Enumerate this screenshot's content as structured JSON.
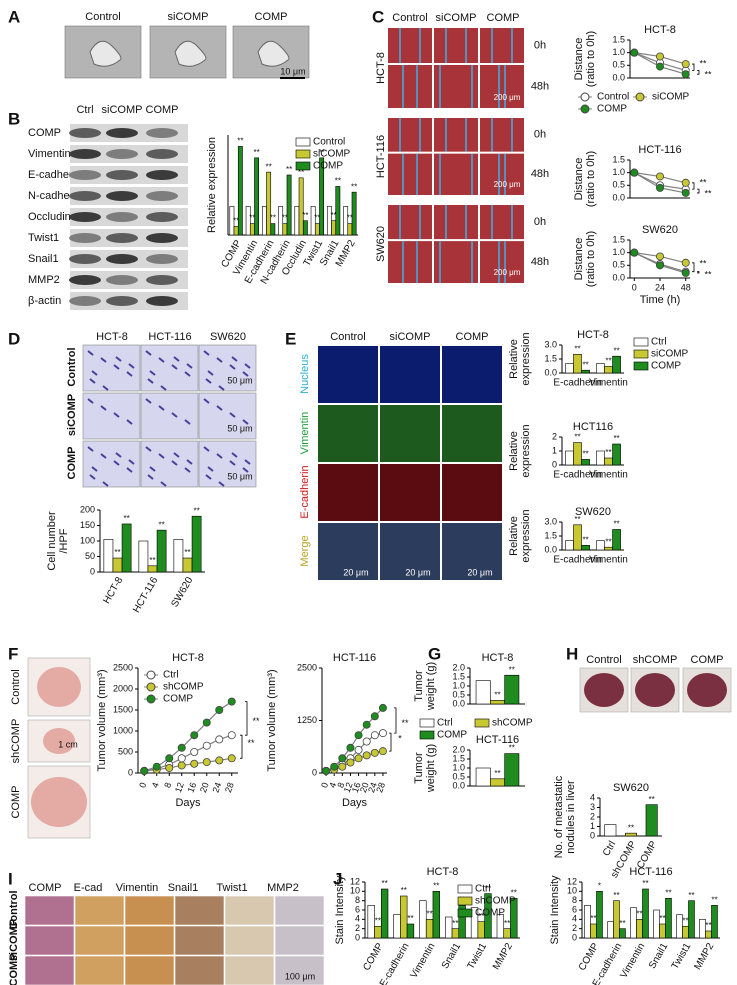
{
  "panel_letters": [
    "A",
    "B",
    "C",
    "D",
    "E",
    "F",
    "G",
    "H",
    "I",
    "J"
  ],
  "a": {
    "labels": [
      "Control",
      "siCOMP",
      "COMP"
    ],
    "scale": "10 μm"
  },
  "b": {
    "columns": [
      "Ctrl",
      "siCOMP",
      "COMP"
    ],
    "rows": [
      "COMP",
      "Vimentin",
      "E-cadherin",
      "N-cadherin",
      "Occludin",
      "Twist1",
      "Snail1",
      "MMP2",
      "β-actin"
    ]
  },
  "c": {
    "columns": [
      "Control",
      "siCOMP",
      "COMP"
    ],
    "cell_lines": [
      "HCT-8",
      "HCT-116",
      "SW620"
    ],
    "times": [
      "0h",
      "48h"
    ],
    "scale": "200 μm"
  },
  "d": {
    "columns": [
      "HCT-8",
      "HCT-116",
      "SW620"
    ],
    "rows": [
      "Control",
      "siCOMP",
      "COMP"
    ],
    "scale": "50 μm"
  },
  "e": {
    "columns": [
      "Control",
      "siCOMP",
      "COMP"
    ],
    "rows": [
      "Nucleus",
      "Vimentin",
      "E-cadherin",
      "Merge"
    ],
    "scale": "20 μm"
  },
  "f": {
    "rows": [
      "Control",
      "shCOMP",
      "COMP"
    ],
    "scale": "1 cm"
  },
  "h": {
    "columns": [
      "Control",
      "shCOMP",
      "COMP"
    ]
  },
  "i": {
    "columns": [
      "COMP",
      "E-cad",
      "Vimentin",
      "Snail1",
      "Twist1",
      "MMP2"
    ],
    "rows": [
      "Control",
      "siCOMP",
      "COMP"
    ],
    "scale": "100 μm"
  },
  "chart_data": [
    {
      "type": "bar",
      "ylabel": [
        "Relative expression"
      ],
      "ylim": [
        0,
        3.5
      ],
      "legend": "upper right",
      "categories": [
        "COMP",
        "Vimentin",
        "E-cadherin",
        "N-cadherin",
        "Occludin",
        "Twist1",
        "Snail1",
        "MMP2"
      ],
      "series": [
        {
          "name": "Control",
          "color": "#ffffff",
          "values": [
            1,
            1,
            1,
            1,
            1,
            1,
            1,
            1
          ]
        },
        {
          "name": "siCOMP",
          "color": "#c8c832",
          "values": [
            0.3,
            0.4,
            2.2,
            0.4,
            2.0,
            0.4,
            0.5,
            0.4
          ],
          "annotations": [
            "**",
            "**",
            "**",
            "**",
            "**",
            "**",
            "**",
            "**"
          ]
        },
        {
          "name": "COMP",
          "color": "#1e8c1e",
          "values": [
            3.1,
            2.7,
            0.4,
            2.1,
            0.5,
            2.7,
            1.7,
            1.5
          ],
          "annotations": [
            "**",
            "**",
            "**",
            "**",
            "**",
            "**",
            "**",
            "**"
          ]
        }
      ]
    },
    {
      "type": "line",
      "title": "HCT-8",
      "ylabel": [
        "Distance",
        "(ratio to 0h)"
      ],
      "x": [
        0,
        24,
        48
      ],
      "xlim": [
        -4,
        52
      ],
      "ylim": [
        0,
        1.5
      ],
      "yticks": [
        {
          "value": 0,
          "label": "0.0"
        },
        0.5,
        {
          "value": 1,
          "label": "1.0"
        },
        1.5
      ],
      "legend": "lower left",
      "line_color": "#808080",
      "annotations": [
        "**",
        "**"
      ],
      "series": [
        {
          "name": "Control",
          "color": "#ffffff",
          "values": [
            1,
            0.6,
            0.3
          ]
        },
        {
          "name": "siCOMP",
          "color": "#c8c832",
          "values": [
            1,
            0.85,
            0.55
          ]
        },
        {
          "name": "COMP",
          "color": "#1e8c1e",
          "values": [
            1,
            0.45,
            0.15
          ]
        }
      ]
    },
    {
      "type": "line",
      "title": "HCT-116",
      "ylabel": [
        "Distance",
        "(ratio to 0h)"
      ],
      "x": [
        0,
        24,
        48
      ],
      "xlim": [
        -4,
        52
      ],
      "ylim": [
        0,
        1.5
      ],
      "yticks": [
        {
          "value": 0,
          "label": "0.0"
        },
        0.5,
        {
          "value": 1,
          "label": "1.0"
        },
        1.5
      ],
      "line_color": "#808080",
      "annotations": [
        "**",
        "**"
      ],
      "series": [
        {
          "color": "#ffffff",
          "values": [
            1,
            0.5,
            0.35
          ]
        },
        {
          "color": "#c8c832",
          "values": [
            1,
            0.85,
            0.6
          ]
        },
        {
          "color": "#1e8c1e",
          "values": [
            1,
            0.4,
            0.2
          ]
        }
      ]
    },
    {
      "type": "line",
      "title": "SW620",
      "ylabel": [
        "Distance",
        "(ratio to 0h)"
      ],
      "xlabel": "Time (h)",
      "x": [
        0,
        24,
        48
      ],
      "xlim": [
        -4,
        52
      ],
      "ylim": [
        0,
        1.5
      ],
      "xticks": [
        0,
        24,
        48
      ],
      "yticks": [
        {
          "value": 0,
          "label": "0.0"
        },
        0.5,
        {
          "value": 1,
          "label": "1.0"
        },
        1.5
      ],
      "line_color": "#808080",
      "annotations": [
        "**",
        "**"
      ],
      "series": [
        {
          "color": "#ffffff",
          "values": [
            1,
            0.55,
            0.25
          ]
        },
        {
          "color": "#c8c832",
          "values": [
            1,
            0.85,
            0.6
          ]
        },
        {
          "color": "#1e8c1e",
          "values": [
            1,
            0.5,
            0.2
          ]
        }
      ]
    },
    {
      "type": "bar",
      "ylabel": [
        "Cell number",
        "/HPF"
      ],
      "ylim": [
        0,
        200
      ],
      "yticks": [
        0,
        50,
        100,
        150,
        200
      ],
      "categories": [
        "HCT-8",
        "HCT-116",
        "SW620"
      ],
      "series": [
        {
          "color": "#ffffff",
          "values": [
            105,
            100,
            105
          ]
        },
        {
          "color": "#c8c832",
          "values": [
            45,
            20,
            45
          ],
          "annotations": [
            "**",
            "**",
            "**"
          ]
        },
        {
          "color": "#1e8c1e",
          "values": [
            155,
            135,
            180
          ],
          "annotations": [
            "**",
            "**",
            "**"
          ]
        }
      ]
    },
    {
      "type": "bar",
      "title": "HCT-8",
      "ylabel": [
        "Relative",
        "expression"
      ],
      "ylim": [
        0,
        3
      ],
      "yticks": [
        {
          "value": 0,
          "label": "0.0"
        },
        1.5,
        {
          "value": 3,
          "label": "3.0"
        }
      ],
      "legend": "right",
      "categories": [
        "E-cadherin",
        "Vimentin"
      ],
      "series": [
        {
          "name": "Ctrl",
          "color": "#ffffff",
          "values": [
            1,
            1
          ]
        },
        {
          "name": "siCOMP",
          "color": "#c8c832",
          "values": [
            2.0,
            0.7
          ],
          "annotations": [
            "**",
            "**"
          ]
        },
        {
          "name": "COMP",
          "color": "#1e8c1e",
          "values": [
            0.3,
            1.8
          ],
          "annotations": [
            "**",
            "**"
          ]
        }
      ]
    },
    {
      "type": "bar",
      "title": "HCT116",
      "ylabel": [
        "Relative",
        "expression"
      ],
      "ylim": [
        0,
        2
      ],
      "yticks": [
        0,
        1,
        2
      ],
      "categories": [
        "E-cadherin",
        "Vimentin"
      ],
      "series": [
        {
          "color": "#ffffff",
          "values": [
            1,
            1
          ]
        },
        {
          "color": "#c8c832",
          "values": [
            1.6,
            0.5
          ],
          "annotations": [
            "**",
            "**"
          ]
        },
        {
          "color": "#1e8c1e",
          "values": [
            0.4,
            1.5
          ],
          "annotations": [
            "**",
            "**"
          ]
        }
      ]
    },
    {
      "type": "bar",
      "title": "SW620",
      "ylabel": [
        "Relative",
        "expression"
      ],
      "ylim": [
        0,
        3
      ],
      "yticks": [
        {
          "value": 0,
          "label": "0.0"
        },
        1.5,
        {
          "value": 3,
          "label": "3.0"
        }
      ],
      "categories": [
        "E-cadherin",
        "Vimentin"
      ],
      "series": [
        {
          "color": "#ffffff",
          "values": [
            1,
            1
          ]
        },
        {
          "color": "#c8c832",
          "values": [
            2.7,
            0.3
          ],
          "annotations": [
            "**",
            "**"
          ]
        },
        {
          "color": "#1e8c1e",
          "values": [
            0.5,
            2.2
          ],
          "annotations": [
            "**",
            "**"
          ]
        }
      ]
    },
    {
      "type": "line",
      "title": "HCT-8",
      "ylabel": [
        "Tumor volume (mm³)"
      ],
      "xlabel": "Days",
      "x": [
        0,
        4,
        8,
        12,
        16,
        20,
        24,
        28
      ],
      "xlim": [
        -2,
        30
      ],
      "ylim": [
        0,
        2500
      ],
      "xticks": [
        0,
        4,
        8,
        12,
        16,
        20,
        24,
        28
      ],
      "yticks": [
        0,
        500,
        1000,
        1500,
        2000,
        2500
      ],
      "legend": "upper left",
      "line_color": "#808080",
      "annotations": [
        "**",
        "**"
      ],
      "series": [
        {
          "name": "Ctrl",
          "color": "#ffffff",
          "values": [
            50,
            100,
            200,
            350,
            500,
            650,
            800,
            900
          ]
        },
        {
          "name": "shCOMP",
          "color": "#c8c832",
          "values": [
            50,
            80,
            120,
            180,
            220,
            260,
            300,
            350
          ]
        },
        {
          "name": "COMP",
          "color": "#1e8c1e",
          "values": [
            50,
            150,
            350,
            600,
            900,
            1200,
            1500,
            1700
          ]
        }
      ]
    },
    {
      "type": "line",
      "title": "HCT-116",
      "ylabel": [
        "Tumor volume (mm³)"
      ],
      "xlabel": "Days",
      "x": [
        0,
        4,
        8,
        12,
        16,
        20,
        24,
        28
      ],
      "xlim": [
        -2,
        30
      ],
      "ylim": [
        0,
        2500
      ],
      "xticks": [
        0,
        4,
        8,
        12,
        16,
        20,
        24,
        28
      ],
      "yticks": [
        0,
        1250,
        2500
      ],
      "line_color": "#808080",
      "annotations": [
        "*",
        "**"
      ],
      "series": [
        {
          "color": "#ffffff",
          "values": [
            50,
            100,
            200,
            350,
            550,
            750,
            900,
            950
          ]
        },
        {
          "color": "#c8c832",
          "values": [
            50,
            80,
            150,
            250,
            350,
            420,
            480,
            520
          ]
        },
        {
          "color": "#1e8c1e",
          "values": [
            50,
            150,
            350,
            600,
            900,
            1150,
            1350,
            1550
          ]
        }
      ]
    },
    {
      "type": "bar",
      "title": "HCT-8",
      "ylabel": [
        "Tumor",
        "weight (g)"
      ],
      "ylim": [
        0,
        2
      ],
      "yticks": [
        {
          "value": 0,
          "label": "0.0"
        },
        0.5,
        {
          "value": 1,
          "label": "1.0"
        },
        1.5,
        {
          "value": 2,
          "label": "2.0"
        }
      ],
      "legend": "lower left",
      "series": [
        {
          "name": "Ctrl",
          "color": "#ffffff",
          "values": [
            1.3
          ]
        },
        {
          "name": "shCOMP",
          "color": "#c8c832",
          "values": [
            0.2
          ],
          "annotations": [
            "**"
          ]
        },
        {
          "name": "COMP",
          "color": "#1e8c1e",
          "values": [
            1.6
          ],
          "annotations": [
            "**"
          ]
        }
      ]
    },
    {
      "type": "bar",
      "title": "HCT-116",
      "ylabel": [
        "Tumor",
        "weight (g)"
      ],
      "ylim": [
        0,
        2
      ],
      "yticks": [
        {
          "value": 0,
          "label": "0.0"
        },
        0.5,
        {
          "value": 1,
          "label": "1.0"
        },
        1.5,
        {
          "value": 2,
          "label": "2.0"
        }
      ],
      "series": [
        {
          "color": "#ffffff",
          "values": [
            1.0
          ]
        },
        {
          "color": "#c8c832",
          "values": [
            0.4
          ],
          "annotations": [
            "**"
          ]
        },
        {
          "color": "#1e8c1e",
          "values": [
            1.8
          ],
          "annotations": [
            "**"
          ]
        }
      ]
    },
    {
      "type": "bar",
      "title": "SW620",
      "ylabel": [
        "No. of metastatic",
        "nodules in liver"
      ],
      "ylim": [
        0,
        4
      ],
      "yticks": [
        0,
        1,
        2,
        3,
        4
      ],
      "categories": [
        "Ctrl",
        "shCOMP",
        "COMP"
      ],
      "values": [
        1.2,
        0.3,
        3.3
      ],
      "colors": [
        "#ffffff",
        "#c8c832",
        "#1e8c1e"
      ],
      "annotations": [
        null,
        "**",
        "**"
      ]
    },
    {
      "type": "bar",
      "title": "HCT-8",
      "ylabel": [
        "Stain Intensity"
      ],
      "ylim": [
        0,
        12
      ],
      "yticks": [
        0,
        2,
        4,
        6,
        8,
        10,
        12
      ],
      "legend": "upper right",
      "categories": [
        "COMP",
        "E-cadherin",
        "Vimentin",
        "Snail1",
        "Twist1",
        "MMP2"
      ],
      "series": [
        {
          "name": "Ctrl",
          "color": "#ffffff",
          "values": [
            7,
            5,
            8,
            4.5,
            6.5,
            5
          ]
        },
        {
          "name": "shCOMP",
          "color": "#c8c832",
          "values": [
            2.5,
            9,
            4,
            2,
            3.5,
            2
          ],
          "annotations": [
            "**",
            "**",
            "**",
            "**",
            "**",
            "**"
          ]
        },
        {
          "name": "COMP",
          "color": "#1e8c1e",
          "values": [
            10.5,
            3,
            10,
            7,
            9.5,
            8.5
          ],
          "annotations": [
            "**",
            "**",
            "**",
            "**",
            "**",
            "**"
          ]
        }
      ]
    },
    {
      "type": "bar",
      "title": "HCT-116",
      "ylabel": [
        "Stain Intensity"
      ],
      "ylim": [
        0,
        12
      ],
      "yticks": [
        0,
        2,
        4,
        6,
        8,
        10,
        12
      ],
      "categories": [
        "COMP",
        "E-cadherin",
        "Vimentin",
        "Snail1",
        "Twist1",
        "MMP2"
      ],
      "series": [
        {
          "color": "#ffffff",
          "values": [
            7,
            3.5,
            6.5,
            6,
            5,
            4
          ]
        },
        {
          "color": "#c8c832",
          "values": [
            3,
            8,
            4,
            3,
            2.5,
            1.5
          ],
          "annotations": [
            "**",
            "**",
            "**",
            "**",
            "**",
            "**"
          ]
        },
        {
          "color": "#1e8c1e",
          "values": [
            10,
            2,
            10.5,
            8.5,
            8,
            7
          ],
          "annotations": [
            "*",
            "**",
            "**",
            "**",
            "**",
            "**"
          ]
        }
      ]
    }
  ]
}
